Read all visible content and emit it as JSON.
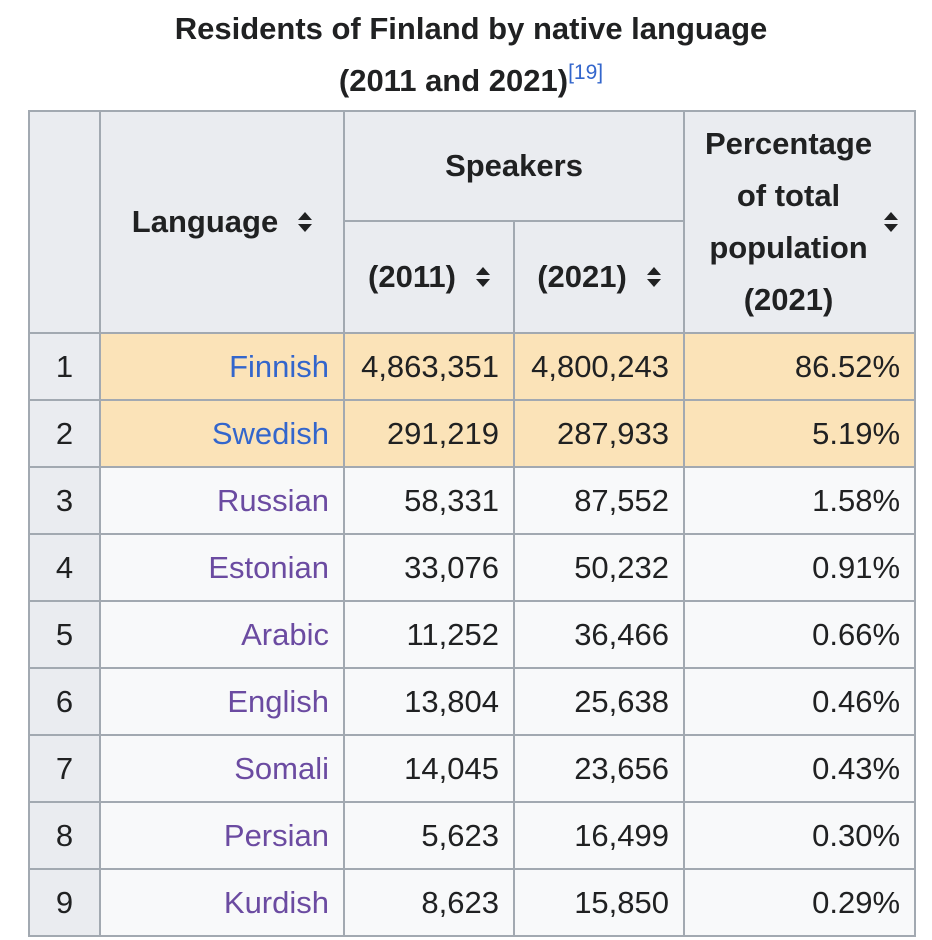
{
  "caption": {
    "title_line1": "Residents of Finland by native language",
    "title_line2": "(2011 and 2021)",
    "reference": "[19]"
  },
  "headers": {
    "language": "Language",
    "speakers": "Speakers",
    "year_2011": "(2011)",
    "year_2021": "(2021)",
    "percentage": "Percentage of total population (2021)"
  },
  "rows": [
    {
      "rank": "1",
      "language": "Finnish",
      "speakers_2011": "4,863,351",
      "speakers_2021": "4,800,243",
      "percentage": "86.52%"
    },
    {
      "rank": "2",
      "language": "Swedish",
      "speakers_2011": "291,219",
      "speakers_2021": "287,933",
      "percentage": "5.19%"
    },
    {
      "rank": "3",
      "language": "Russian",
      "speakers_2011": "58,331",
      "speakers_2021": "87,552",
      "percentage": "1.58%"
    },
    {
      "rank": "4",
      "language": "Estonian",
      "speakers_2011": "33,076",
      "speakers_2021": "50,232",
      "percentage": "0.91%"
    },
    {
      "rank": "5",
      "language": "Arabic",
      "speakers_2011": "11,252",
      "speakers_2021": "36,466",
      "percentage": "0.66%"
    },
    {
      "rank": "6",
      "language": "English",
      "speakers_2011": "13,804",
      "speakers_2021": "25,638",
      "percentage": "0.46%"
    },
    {
      "rank": "7",
      "language": "Somali",
      "speakers_2011": "14,045",
      "speakers_2021": "23,656",
      "percentage": "0.43%"
    },
    {
      "rank": "8",
      "language": "Persian",
      "speakers_2011": "5,623",
      "speakers_2021": "16,499",
      "percentage": "0.30%"
    },
    {
      "rank": "9",
      "language": "Kurdish",
      "speakers_2011": "8,623",
      "speakers_2021": "15,850",
      "percentage": "0.29%"
    }
  ],
  "colors": {
    "highlight_row": "#fbe3b8",
    "header_bg": "#eaecf0",
    "link": "#3366cc",
    "visited_link": "#6b4ba1"
  }
}
